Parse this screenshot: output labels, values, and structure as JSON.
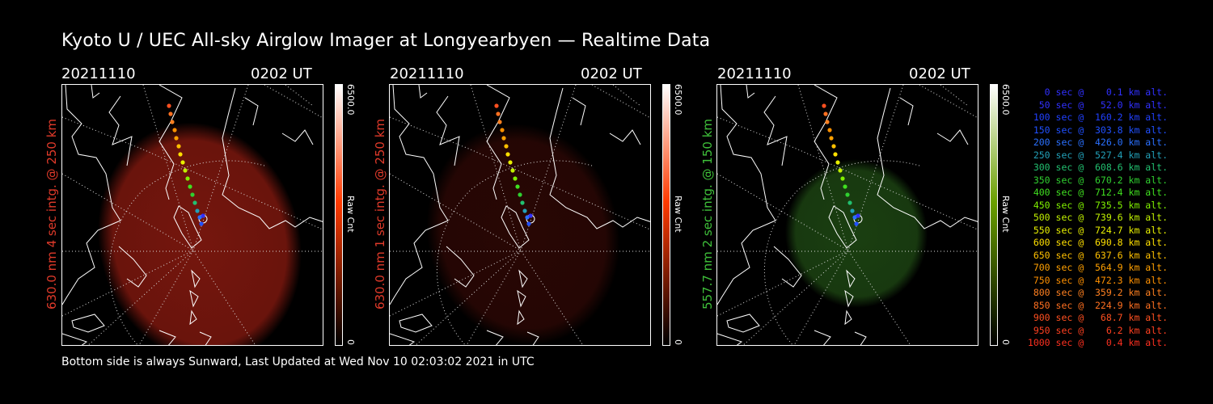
{
  "title": "Kyoto U / UEC All-sky Airglow Imager at Longyearbyen — Realtime Data",
  "panels": [
    {
      "date": "20211110",
      "time": "0202 UT",
      "side_label": "630.0 nm 4 sec intg. @ 250 km",
      "label_color": "#e03a2a",
      "glow_color": "#8a1a10",
      "glow_opacity": 0.85,
      "cbar_color": "#ff3a00",
      "cbar_max": "6500.0",
      "cbar_min": "0",
      "cbar_unit": "Raw Cnt"
    },
    {
      "date": "20211110",
      "time": "0202 UT",
      "side_label": "630.0 nm 1 sec intg. @ 250 km",
      "label_color": "#e03a2a",
      "glow_color": "#3a0a06",
      "glow_opacity": 0.7,
      "cbar_color": "#ff3a00",
      "cbar_max": "6500.0",
      "cbar_min": "0",
      "cbar_unit": "Raw Cnt"
    },
    {
      "date": "20211110",
      "time": "0202 UT",
      "side_label": "557.7 nm 2 sec intg. @ 150 km",
      "label_color": "#3fc03a",
      "glow_color": "#1f4a14",
      "glow_opacity": 0.85,
      "cbar_color": "#6aa000",
      "cbar_max": "6500.0",
      "cbar_min": "0",
      "cbar_unit": "Raw Cnt"
    }
  ],
  "legend": [
    {
      "text": "   0 sec @    0.1 km alt.",
      "color": "#3030ff"
    },
    {
      "text": "  50 sec @   52.0 km alt.",
      "color": "#3030ff"
    },
    {
      "text": " 100 sec @  160.2 km alt.",
      "color": "#2040ff"
    },
    {
      "text": " 150 sec @  303.8 km alt.",
      "color": "#2050ff"
    },
    {
      "text": " 200 sec @  426.0 km alt.",
      "color": "#2a70ff"
    },
    {
      "text": " 250 sec @  527.4 km alt.",
      "color": "#22a0b8"
    },
    {
      "text": " 300 sec @  608.6 km alt.",
      "color": "#22c070"
    },
    {
      "text": " 350 sec @  670.2 km alt.",
      "color": "#30d030"
    },
    {
      "text": " 400 sec @  712.4 km alt.",
      "color": "#40e020"
    },
    {
      "text": " 450 sec @  735.5 km alt.",
      "color": "#80f000"
    },
    {
      "text": " 500 sec @  739.6 km alt.",
      "color": "#c0f000"
    },
    {
      "text": " 550 sec @  724.7 km alt.",
      "color": "#e8f000"
    },
    {
      "text": " 600 sec @  690.8 km alt.",
      "color": "#ffe000"
    },
    {
      "text": " 650 sec @  637.6 km alt.",
      "color": "#ffc000"
    },
    {
      "text": " 700 sec @  564.9 km alt.",
      "color": "#ffa000"
    },
    {
      "text": " 750 sec @  472.3 km alt.",
      "color": "#ff9000"
    },
    {
      "text": " 800 sec @  359.2 km alt.",
      "color": "#ff8020"
    },
    {
      "text": " 850 sec @  224.9 km alt.",
      "color": "#ff7020"
    },
    {
      "text": " 900 sec @   68.7 km alt.",
      "color": "#ff5020"
    },
    {
      "text": " 950 sec @    6.2 km alt.",
      "color": "#ff4020"
    },
    {
      "text": "1000 sec @    0.4 km alt.",
      "color": "#ff3020"
    }
  ],
  "footer": "Bottom side is always Sunward, Last Updated at Wed Nov 10 02:03:02 2021 in UTC"
}
